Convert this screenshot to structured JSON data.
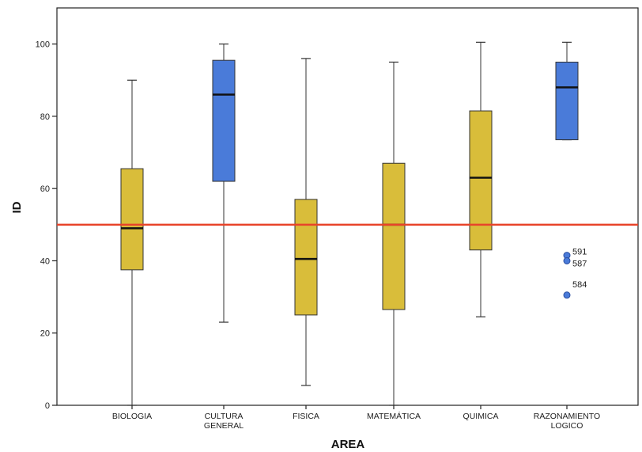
{
  "chart_data": {
    "type": "boxplot",
    "xlabel": "AREA",
    "ylabel": "ID",
    "ylim": [
      0,
      110
    ],
    "yticks": [
      0,
      20,
      40,
      60,
      80,
      100
    ],
    "reference_line": {
      "y": 50,
      "color": "#e8442a"
    },
    "colors": {
      "yellow": "#d9bd3a",
      "blue": "#4a7bd9"
    },
    "categories": [
      {
        "label": [
          "BIOLOGIA"
        ],
        "min": 0,
        "q1": 37.5,
        "median": 49,
        "q3": 65.5,
        "max": 90,
        "color": "yellow",
        "outliers": []
      },
      {
        "label": [
          "CULTURA",
          "GENERAL"
        ],
        "min": 23,
        "q1": 62,
        "median": 86,
        "q3": 95.5,
        "max": 100,
        "color": "blue",
        "outliers": []
      },
      {
        "label": [
          "FISICA"
        ],
        "min": 5.5,
        "q1": 25,
        "median": 40.5,
        "q3": 57,
        "max": 96,
        "color": "yellow",
        "outliers": []
      },
      {
        "label": [
          "MATEMÁTICA"
        ],
        "min": 0,
        "q1": 26.5,
        "median": 50,
        "q3": 67,
        "max": 95,
        "color": "yellow",
        "outliers": []
      },
      {
        "label": [
          "QUIMICA"
        ],
        "min": 24.5,
        "q1": 43,
        "median": 63,
        "q3": 81.5,
        "max": 100.5,
        "color": "yellow",
        "outliers": []
      },
      {
        "label": [
          "RAZONAMIENTO",
          "LOGICO"
        ],
        "min": 73.5,
        "q1": 73.5,
        "median": 88,
        "q3": 95,
        "max": 100.5,
        "color": "blue",
        "outliers": [
          {
            "value": 41.5,
            "label": "591"
          },
          {
            "value": 40,
            "label": "587"
          },
          {
            "value": 30.5,
            "label": "584"
          }
        ]
      }
    ]
  }
}
